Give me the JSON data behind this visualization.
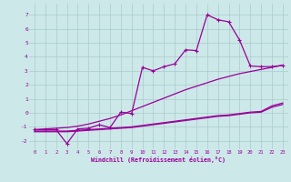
{
  "background_color": "#cce8e8",
  "grid_color": "#aacccc",
  "line_color": "#990099",
  "xlabel": "Windchill (Refroidissement éolien,°C)",
  "xlim": [
    -0.5,
    23.5
  ],
  "ylim": [
    -2.6,
    7.8
  ],
  "yticks": [
    -2,
    -1,
    0,
    1,
    2,
    3,
    4,
    5,
    6,
    7
  ],
  "xticks": [
    0,
    1,
    2,
    3,
    4,
    5,
    6,
    7,
    8,
    9,
    10,
    11,
    12,
    13,
    14,
    15,
    16,
    17,
    18,
    19,
    20,
    21,
    22,
    23
  ],
  "line_diag_x": [
    0,
    1,
    2,
    3,
    4,
    5,
    6,
    7,
    8,
    9,
    10,
    11,
    12,
    13,
    14,
    15,
    16,
    17,
    18,
    19,
    20,
    21,
    22,
    23
  ],
  "line_diag_y": [
    -1.2,
    -1.15,
    -1.1,
    -1.05,
    -0.95,
    -0.8,
    -0.6,
    -0.4,
    -0.15,
    0.15,
    0.45,
    0.75,
    1.05,
    1.35,
    1.65,
    1.9,
    2.15,
    2.4,
    2.6,
    2.8,
    2.95,
    3.1,
    3.25,
    3.4
  ],
  "line_flat1_x": [
    0,
    1,
    2,
    3,
    4,
    5,
    6,
    7,
    8,
    9,
    10,
    11,
    12,
    13,
    14,
    15,
    16,
    17,
    18,
    19,
    20,
    21,
    22,
    23
  ],
  "line_flat1_y": [
    -1.3,
    -1.3,
    -1.3,
    -1.3,
    -1.25,
    -1.2,
    -1.15,
    -1.1,
    -1.05,
    -1.0,
    -0.9,
    -0.8,
    -0.7,
    -0.6,
    -0.5,
    -0.4,
    -0.3,
    -0.2,
    -0.15,
    -0.05,
    0.05,
    0.1,
    0.5,
    0.7
  ],
  "line_flat2_x": [
    0,
    1,
    2,
    3,
    4,
    5,
    6,
    7,
    8,
    9,
    10,
    11,
    12,
    13,
    14,
    15,
    16,
    17,
    18,
    19,
    20,
    21,
    22,
    23
  ],
  "line_flat2_y": [
    -1.35,
    -1.35,
    -1.35,
    -1.35,
    -1.3,
    -1.25,
    -1.2,
    -1.15,
    -1.1,
    -1.05,
    -0.95,
    -0.85,
    -0.75,
    -0.65,
    -0.55,
    -0.45,
    -0.35,
    -0.25,
    -0.2,
    -0.1,
    0.0,
    0.05,
    0.4,
    0.6
  ],
  "line_spike_x": [
    0,
    1,
    2,
    3,
    4,
    5,
    6,
    7,
    8,
    9,
    10,
    11,
    12,
    13,
    14,
    15,
    16,
    17,
    18,
    19,
    20,
    21,
    22,
    23
  ],
  "line_spike_y": [
    -1.2,
    -1.2,
    -1.2,
    -2.2,
    -1.15,
    -1.1,
    -0.85,
    -1.05,
    0.05,
    -0.05,
    3.25,
    3.0,
    3.3,
    3.5,
    4.5,
    4.45,
    7.0,
    6.65,
    6.5,
    5.2,
    3.35,
    3.3,
    3.3,
    3.4
  ]
}
